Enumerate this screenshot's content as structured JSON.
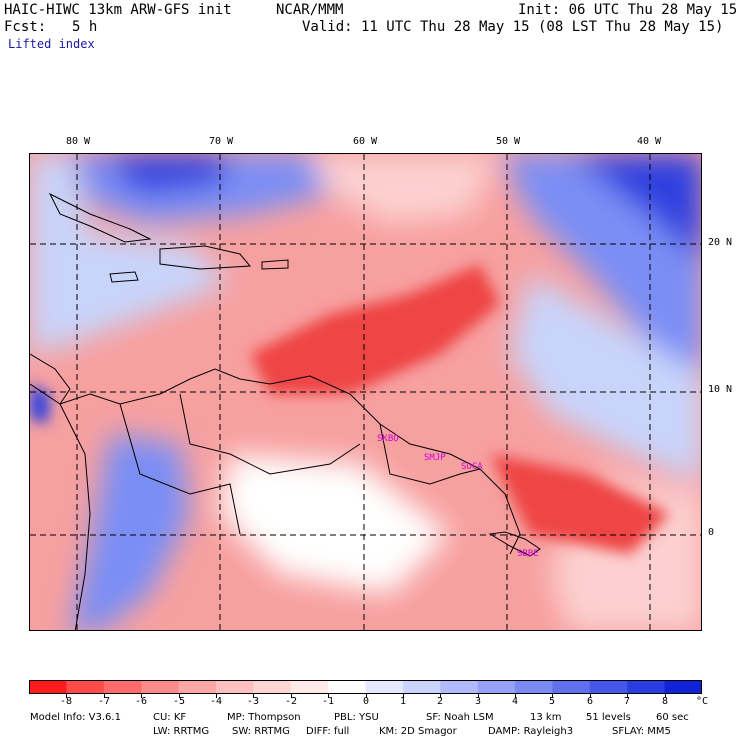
{
  "header": {
    "model": "HAIC-HIWC 13km ARW-GFS init",
    "org": "NCAR/MMM",
    "init": "Init: 06 UTC Thu 28 May 15",
    "fcst_label": "Fcst:",
    "fcst_value": "5 h",
    "valid": "Valid: 11 UTC Thu 28 May 15 (08 LST Thu 28 May 15)",
    "field": "Lifted index"
  },
  "map": {
    "lon_labels": [
      "80 W",
      "70 W",
      "60 W",
      "50 W",
      "40 W"
    ],
    "lat_labels": [
      "20 N",
      "10 N",
      "0"
    ],
    "stations": [
      "SKBO",
      "SMJP",
      "SOCA",
      "SBBE"
    ],
    "colors": {
      "strong_neg": "#ef4545",
      "mid_neg": "#f7a0a0",
      "weak_neg": "#fcd0d0",
      "neutral": "#ffffff",
      "weak_pos": "#c8d4fa",
      "mid_pos": "#7a8ef5",
      "strong_pos": "#2f3fe0",
      "station": "#d000d0"
    }
  },
  "colorbar": {
    "colors": [
      "#ff1b1b",
      "#ff4a4a",
      "#ff6a6a",
      "#ff8a8a",
      "#ffa6a6",
      "#ffbfbf",
      "#ffd6d6",
      "#ffe9e9",
      "#ffffff",
      "#e6e9fe",
      "#ccd3fc",
      "#b1bbfa",
      "#96a2f7",
      "#7b89f3",
      "#6070ee",
      "#4557e8",
      "#2a3de1",
      "#0f24d9"
    ],
    "labels": [
      "-8",
      "-7",
      "-6",
      "-5",
      "-4",
      "-3",
      "-2",
      "-1",
      "0",
      "1",
      "2",
      "3",
      "4",
      "5",
      "6",
      "7",
      "8"
    ],
    "unit": "°C"
  },
  "footer": {
    "line1": [
      "Model Info: V3.6.1",
      "CU: KF",
      "MP: Thompson",
      "PBL: YSU",
      "SF: Noah LSM",
      "13 km",
      "51 levels",
      "60 sec"
    ],
    "line2": [
      "LW: RRTMG",
      "SW: RRTMG",
      "DIFF: full",
      "KM: 2D Smagor",
      "DAMP: Rayleigh3",
      "SFLAY: MM5"
    ]
  }
}
